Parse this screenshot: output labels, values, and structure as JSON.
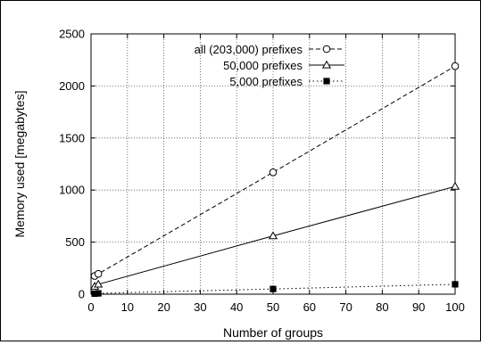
{
  "chart_data": {
    "type": "line",
    "title": "",
    "xlabel": "Number of groups",
    "ylabel": "Memory used [megabytes]",
    "xlim": [
      0,
      100
    ],
    "ylim": [
      0,
      2500
    ],
    "xticks": [
      0,
      10,
      20,
      30,
      40,
      50,
      60,
      70,
      80,
      90,
      100
    ],
    "yticks": [
      0,
      500,
      1000,
      1500,
      2000,
      2500
    ],
    "grid": true,
    "legend_position": "top-left",
    "series": [
      {
        "name": "all (203,000) prefixes",
        "x": [
          1,
          2,
          50,
          100
        ],
        "y": [
          175,
          195,
          1170,
          2190
        ],
        "line_style": "dashed",
        "marker": "open-circle",
        "color": "#000000"
      },
      {
        "name": "50,000 prefixes",
        "x": [
          1,
          2,
          50,
          100
        ],
        "y": [
          75,
          95,
          560,
          1035
        ],
        "line_style": "solid",
        "marker": "open-triangle",
        "color": "#000000"
      },
      {
        "name": "5,000 prefixes",
        "x": [
          1,
          2,
          50,
          100
        ],
        "y": [
          5,
          8,
          50,
          95
        ],
        "line_style": "dotted",
        "marker": "filled-square",
        "color": "#000000"
      }
    ]
  }
}
